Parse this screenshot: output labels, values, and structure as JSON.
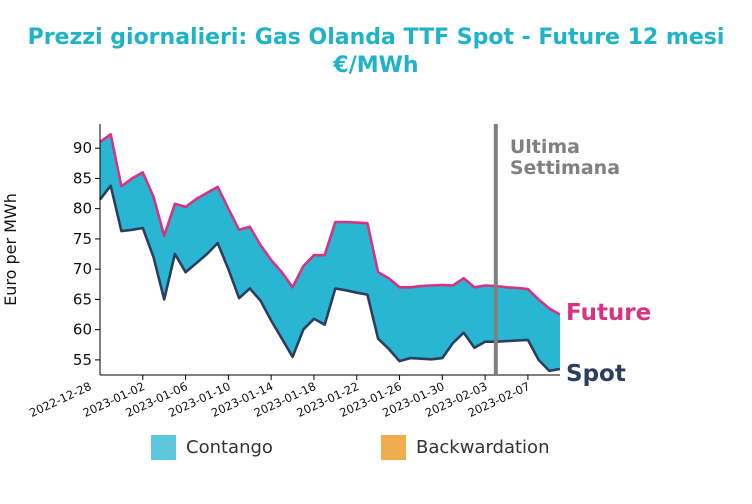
{
  "chart_data": {
    "type": "area",
    "title": "Prezzi giornalieri: Gas Olanda TTF Spot - Future 12 mesi",
    "subtitle": "€/MWh",
    "xlabel": "",
    "ylabel": "Euro per MWh",
    "ylim": [
      52.5,
      94
    ],
    "yticks": [
      55,
      60,
      65,
      70,
      75,
      80,
      85,
      90
    ],
    "xlim": [
      "2022-12-29",
      "2023-02-10"
    ],
    "xticks": [
      "2022-12-28",
      "2023-01-02",
      "2023-01-06",
      "2023-01-10",
      "2023-01-14",
      "2023-01-18",
      "2023-01-22",
      "2023-01-26",
      "2023-01-30",
      "2023-02-03",
      "2023-02-07"
    ],
    "grid": false,
    "legend_position": "bottom",
    "legend": [
      {
        "label": "Contango",
        "color": "#5bc8de"
      },
      {
        "label": "Backwardation",
        "color": "#f0ad4e"
      }
    ],
    "annotations": {
      "vline_date": "2023-02-04",
      "vline_label_1": "Ultima",
      "vline_label_2": "Settimana",
      "future_label": "Future",
      "spot_label": "Spot"
    },
    "colors": {
      "future": "#d63384",
      "spot": "#2c3e5f",
      "fill": "#29b6d2",
      "vline": "#808080"
    },
    "series": [
      {
        "name": "Future",
        "x": [
          "2022-12-29",
          "2022-12-30",
          "2022-12-31",
          "2023-01-01",
          "2023-01-02",
          "2023-01-03",
          "2023-01-04",
          "2023-01-05",
          "2023-01-06",
          "2023-01-07",
          "2023-01-08",
          "2023-01-09",
          "2023-01-10",
          "2023-01-11",
          "2023-01-12",
          "2023-01-13",
          "2023-01-14",
          "2023-01-15",
          "2023-01-16",
          "2023-01-17",
          "2023-01-18",
          "2023-01-19",
          "2023-01-20",
          "2023-01-21",
          "2023-01-22",
          "2023-01-23",
          "2023-01-24",
          "2023-01-25",
          "2023-01-26",
          "2023-01-27",
          "2023-01-28",
          "2023-01-29",
          "2023-01-30",
          "2023-01-31",
          "2023-02-01",
          "2023-02-02",
          "2023-02-03",
          "2023-02-04",
          "2023-02-05",
          "2023-02-06",
          "2023-02-07",
          "2023-02-08",
          "2023-02-09",
          "2023-02-10"
        ],
        "values": [
          91.0,
          92.3,
          83.7,
          85.0,
          86.0,
          82.0,
          75.5,
          80.8,
          80.3,
          81.6,
          82.6,
          83.6,
          80.0,
          76.5,
          77.0,
          74.0,
          71.5,
          69.5,
          67.0,
          70.5,
          72.3,
          72.3,
          77.8,
          77.8,
          77.7,
          77.6,
          69.5,
          68.5,
          67.0,
          67.0,
          67.2,
          67.3,
          67.4,
          67.3,
          68.5,
          67.0,
          67.3,
          67.2,
          67.0,
          66.9,
          66.7,
          65.0,
          63.5,
          62.5
        ]
      },
      {
        "name": "Spot",
        "x": [
          "2022-12-29",
          "2022-12-30",
          "2022-12-31",
          "2023-01-01",
          "2023-01-02",
          "2023-01-03",
          "2023-01-04",
          "2023-01-05",
          "2023-01-06",
          "2023-01-07",
          "2023-01-08",
          "2023-01-09",
          "2023-01-10",
          "2023-01-11",
          "2023-01-12",
          "2023-01-13",
          "2023-01-14",
          "2023-01-15",
          "2023-01-16",
          "2023-01-17",
          "2023-01-18",
          "2023-01-19",
          "2023-01-20",
          "2023-01-21",
          "2023-01-22",
          "2023-01-23",
          "2023-01-24",
          "2023-01-25",
          "2023-01-26",
          "2023-01-27",
          "2023-01-28",
          "2023-01-29",
          "2023-01-30",
          "2023-01-31",
          "2023-02-01",
          "2023-02-02",
          "2023-02-03",
          "2023-02-04",
          "2023-02-05",
          "2023-02-06",
          "2023-02-07",
          "2023-02-08",
          "2023-02-09",
          "2023-02-10"
        ],
        "values": [
          81.5,
          83.8,
          76.3,
          76.5,
          76.8,
          72.0,
          65.0,
          72.5,
          69.5,
          71.0,
          72.5,
          74.3,
          70.0,
          65.2,
          66.8,
          64.8,
          61.5,
          58.5,
          55.5,
          60.0,
          61.8,
          60.8,
          66.8,
          66.5,
          66.1,
          65.8,
          58.5,
          56.8,
          54.8,
          55.3,
          55.2,
          55.1,
          55.3,
          57.8,
          59.5,
          57.0,
          58.0,
          58.0,
          58.1,
          58.2,
          58.3,
          55.0,
          53.2,
          53.5
        ]
      }
    ]
  }
}
